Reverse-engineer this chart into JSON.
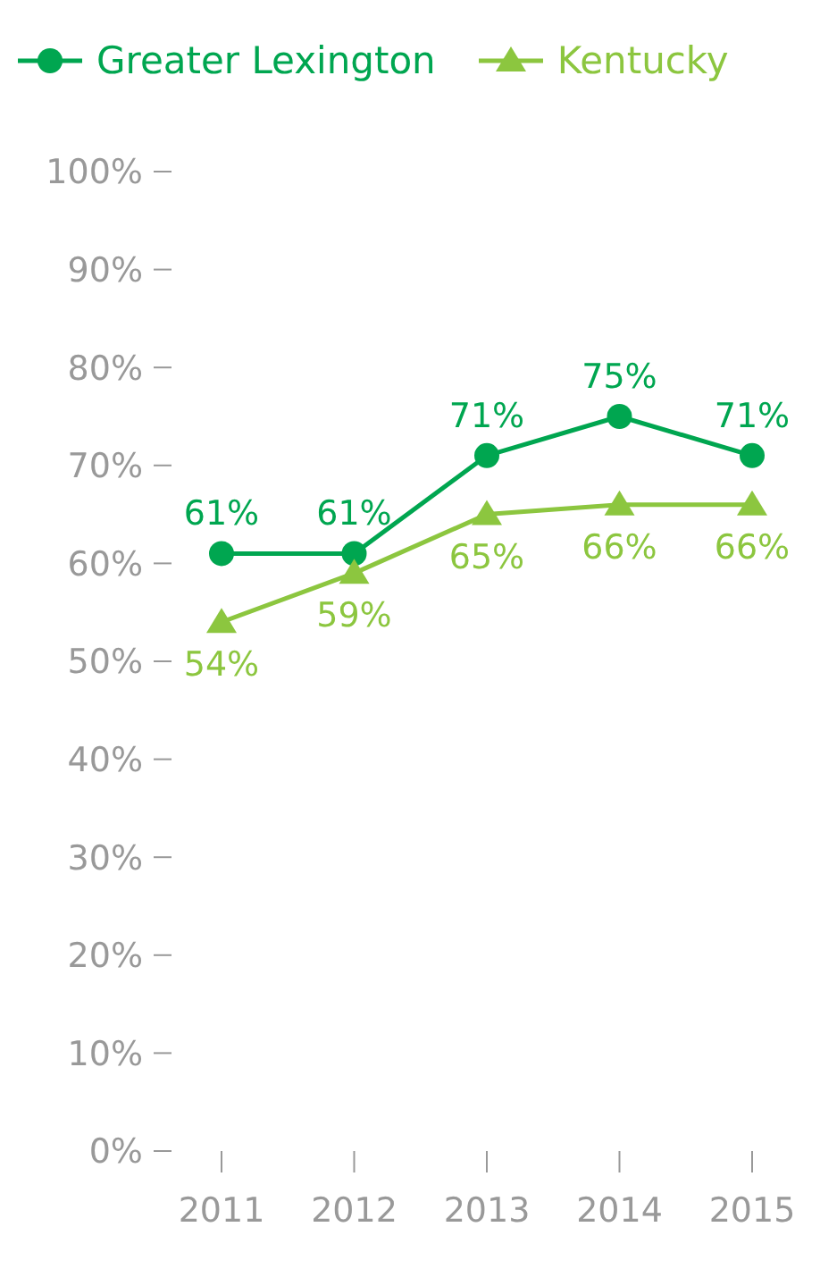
{
  "chart_data": {
    "type": "line",
    "categories": [
      "2011",
      "2012",
      "2013",
      "2014",
      "2015"
    ],
    "series": [
      {
        "name": "Greater Lexington",
        "color": "#00a650",
        "marker": "circle",
        "values": [
          61,
          61,
          71,
          75,
          71
        ],
        "value_labels": [
          "61%",
          "61%",
          "71%",
          "75%",
          "71%"
        ]
      },
      {
        "name": "Kentucky",
        "color": "#8cc63f",
        "marker": "triangle",
        "values": [
          54,
          59,
          65,
          66,
          66
        ],
        "value_labels": [
          "54%",
          "59%",
          "65%",
          "66%",
          "66%"
        ]
      }
    ],
    "ylim": [
      0,
      100
    ],
    "yticks": [
      {
        "value": 0,
        "label": "0%"
      },
      {
        "value": 10,
        "label": "10%"
      },
      {
        "value": 20,
        "label": "20%"
      },
      {
        "value": 30,
        "label": "30%"
      },
      {
        "value": 40,
        "label": "40%"
      },
      {
        "value": 50,
        "label": "50%"
      },
      {
        "value": 60,
        "label": "60%"
      },
      {
        "value": 70,
        "label": "70%"
      },
      {
        "value": 80,
        "label": "80%"
      },
      {
        "value": 90,
        "label": "90%"
      },
      {
        "value": 100,
        "label": "100%"
      }
    ],
    "grid": false,
    "legend": "top left",
    "line_style": "solid"
  }
}
